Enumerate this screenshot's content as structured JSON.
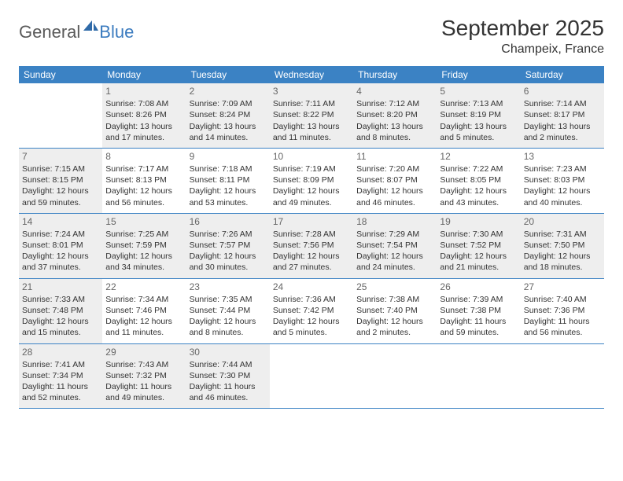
{
  "logo": {
    "general": "General",
    "blue": "Blue"
  },
  "title": "September 2025",
  "location": "Champeix, France",
  "weekdays": [
    "Sunday",
    "Monday",
    "Tuesday",
    "Wednesday",
    "Thursday",
    "Friday",
    "Saturday"
  ],
  "colors": {
    "header_bg": "#3b82c4",
    "shaded_bg": "#eeeeee",
    "logo_gray": "#5a5a5a",
    "logo_blue": "#3b7bbf"
  },
  "weeks": [
    [
      {
        "num": "",
        "sunrise": "",
        "sunset": "",
        "daylight": "",
        "shaded": false
      },
      {
        "num": "1",
        "sunrise": "Sunrise: 7:08 AM",
        "sunset": "Sunset: 8:26 PM",
        "daylight": "Daylight: 13 hours and 17 minutes.",
        "shaded": true
      },
      {
        "num": "2",
        "sunrise": "Sunrise: 7:09 AM",
        "sunset": "Sunset: 8:24 PM",
        "daylight": "Daylight: 13 hours and 14 minutes.",
        "shaded": true
      },
      {
        "num": "3",
        "sunrise": "Sunrise: 7:11 AM",
        "sunset": "Sunset: 8:22 PM",
        "daylight": "Daylight: 13 hours and 11 minutes.",
        "shaded": true
      },
      {
        "num": "4",
        "sunrise": "Sunrise: 7:12 AM",
        "sunset": "Sunset: 8:20 PM",
        "daylight": "Daylight: 13 hours and 8 minutes.",
        "shaded": true
      },
      {
        "num": "5",
        "sunrise": "Sunrise: 7:13 AM",
        "sunset": "Sunset: 8:19 PM",
        "daylight": "Daylight: 13 hours and 5 minutes.",
        "shaded": true
      },
      {
        "num": "6",
        "sunrise": "Sunrise: 7:14 AM",
        "sunset": "Sunset: 8:17 PM",
        "daylight": "Daylight: 13 hours and 2 minutes.",
        "shaded": true
      }
    ],
    [
      {
        "num": "7",
        "sunrise": "Sunrise: 7:15 AM",
        "sunset": "Sunset: 8:15 PM",
        "daylight": "Daylight: 12 hours and 59 minutes.",
        "shaded": true
      },
      {
        "num": "8",
        "sunrise": "Sunrise: 7:17 AM",
        "sunset": "Sunset: 8:13 PM",
        "daylight": "Daylight: 12 hours and 56 minutes.",
        "shaded": false
      },
      {
        "num": "9",
        "sunrise": "Sunrise: 7:18 AM",
        "sunset": "Sunset: 8:11 PM",
        "daylight": "Daylight: 12 hours and 53 minutes.",
        "shaded": false
      },
      {
        "num": "10",
        "sunrise": "Sunrise: 7:19 AM",
        "sunset": "Sunset: 8:09 PM",
        "daylight": "Daylight: 12 hours and 49 minutes.",
        "shaded": false
      },
      {
        "num": "11",
        "sunrise": "Sunrise: 7:20 AM",
        "sunset": "Sunset: 8:07 PM",
        "daylight": "Daylight: 12 hours and 46 minutes.",
        "shaded": false
      },
      {
        "num": "12",
        "sunrise": "Sunrise: 7:22 AM",
        "sunset": "Sunset: 8:05 PM",
        "daylight": "Daylight: 12 hours and 43 minutes.",
        "shaded": false
      },
      {
        "num": "13",
        "sunrise": "Sunrise: 7:23 AM",
        "sunset": "Sunset: 8:03 PM",
        "daylight": "Daylight: 12 hours and 40 minutes.",
        "shaded": false
      }
    ],
    [
      {
        "num": "14",
        "sunrise": "Sunrise: 7:24 AM",
        "sunset": "Sunset: 8:01 PM",
        "daylight": "Daylight: 12 hours and 37 minutes.",
        "shaded": true
      },
      {
        "num": "15",
        "sunrise": "Sunrise: 7:25 AM",
        "sunset": "Sunset: 7:59 PM",
        "daylight": "Daylight: 12 hours and 34 minutes.",
        "shaded": true
      },
      {
        "num": "16",
        "sunrise": "Sunrise: 7:26 AM",
        "sunset": "Sunset: 7:57 PM",
        "daylight": "Daylight: 12 hours and 30 minutes.",
        "shaded": true
      },
      {
        "num": "17",
        "sunrise": "Sunrise: 7:28 AM",
        "sunset": "Sunset: 7:56 PM",
        "daylight": "Daylight: 12 hours and 27 minutes.",
        "shaded": true
      },
      {
        "num": "18",
        "sunrise": "Sunrise: 7:29 AM",
        "sunset": "Sunset: 7:54 PM",
        "daylight": "Daylight: 12 hours and 24 minutes.",
        "shaded": true
      },
      {
        "num": "19",
        "sunrise": "Sunrise: 7:30 AM",
        "sunset": "Sunset: 7:52 PM",
        "daylight": "Daylight: 12 hours and 21 minutes.",
        "shaded": true
      },
      {
        "num": "20",
        "sunrise": "Sunrise: 7:31 AM",
        "sunset": "Sunset: 7:50 PM",
        "daylight": "Daylight: 12 hours and 18 minutes.",
        "shaded": true
      }
    ],
    [
      {
        "num": "21",
        "sunrise": "Sunrise: 7:33 AM",
        "sunset": "Sunset: 7:48 PM",
        "daylight": "Daylight: 12 hours and 15 minutes.",
        "shaded": true
      },
      {
        "num": "22",
        "sunrise": "Sunrise: 7:34 AM",
        "sunset": "Sunset: 7:46 PM",
        "daylight": "Daylight: 12 hours and 11 minutes.",
        "shaded": false
      },
      {
        "num": "23",
        "sunrise": "Sunrise: 7:35 AM",
        "sunset": "Sunset: 7:44 PM",
        "daylight": "Daylight: 12 hours and 8 minutes.",
        "shaded": false
      },
      {
        "num": "24",
        "sunrise": "Sunrise: 7:36 AM",
        "sunset": "Sunset: 7:42 PM",
        "daylight": "Daylight: 12 hours and 5 minutes.",
        "shaded": false
      },
      {
        "num": "25",
        "sunrise": "Sunrise: 7:38 AM",
        "sunset": "Sunset: 7:40 PM",
        "daylight": "Daylight: 12 hours and 2 minutes.",
        "shaded": false
      },
      {
        "num": "26",
        "sunrise": "Sunrise: 7:39 AM",
        "sunset": "Sunset: 7:38 PM",
        "daylight": "Daylight: 11 hours and 59 minutes.",
        "shaded": false
      },
      {
        "num": "27",
        "sunrise": "Sunrise: 7:40 AM",
        "sunset": "Sunset: 7:36 PM",
        "daylight": "Daylight: 11 hours and 56 minutes.",
        "shaded": false
      }
    ],
    [
      {
        "num": "28",
        "sunrise": "Sunrise: 7:41 AM",
        "sunset": "Sunset: 7:34 PM",
        "daylight": "Daylight: 11 hours and 52 minutes.",
        "shaded": true
      },
      {
        "num": "29",
        "sunrise": "Sunrise: 7:43 AM",
        "sunset": "Sunset: 7:32 PM",
        "daylight": "Daylight: 11 hours and 49 minutes.",
        "shaded": true
      },
      {
        "num": "30",
        "sunrise": "Sunrise: 7:44 AM",
        "sunset": "Sunset: 7:30 PM",
        "daylight": "Daylight: 11 hours and 46 minutes.",
        "shaded": true
      },
      {
        "num": "",
        "sunrise": "",
        "sunset": "",
        "daylight": "",
        "shaded": false
      },
      {
        "num": "",
        "sunrise": "",
        "sunset": "",
        "daylight": "",
        "shaded": false
      },
      {
        "num": "",
        "sunrise": "",
        "sunset": "",
        "daylight": "",
        "shaded": false
      },
      {
        "num": "",
        "sunrise": "",
        "sunset": "",
        "daylight": "",
        "shaded": false
      }
    ]
  ]
}
